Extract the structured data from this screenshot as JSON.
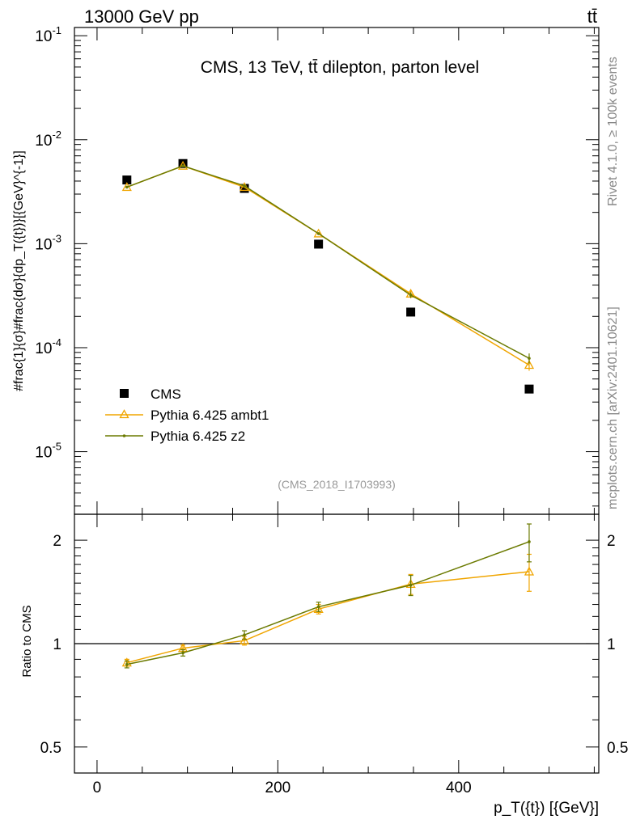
{
  "header": {
    "left": "13000 GeV pp",
    "right": "tt̄"
  },
  "side_texts": {
    "rivet": "Rivet 4.1.0, ≥ 100k events",
    "mcplots": "mcplots.cern.ch [arXiv:2401.10621]"
  },
  "chart_data": [
    {
      "type": "scatter",
      "title": "CMS, 13 TeV, tt̄ dilepton, parton level",
      "watermark": "(CMS_2018_I1703993)",
      "xlabel": "p_T({t}) [{GeV}]",
      "ylabel": "#frac{1}{σ}#frac{dσ}{dp_T({t})}[{GeV}^{-1}]",
      "yscale": "log",
      "xlim": [
        -25,
        555
      ],
      "ylim": [
        2.5e-06,
        0.12
      ],
      "y_ticks": [
        {
          "mantissa": "10",
          "exp": "-5"
        },
        {
          "mantissa": "10",
          "exp": "-4"
        },
        {
          "mantissa": "10",
          "exp": "-3"
        },
        {
          "mantissa": "10",
          "exp": "-2"
        },
        {
          "mantissa": "10",
          "exp": "-1"
        }
      ],
      "legend": {
        "position": "bottom-left"
      },
      "series": [
        {
          "name": "CMS",
          "color": "#000000",
          "marker": "square",
          "x": [
            33,
            95,
            163,
            245,
            347,
            478
          ],
          "y": [
            0.0041,
            0.0059,
            0.0034,
            0.00099,
            0.00022,
            4e-05
          ]
        },
        {
          "name": "Pythia 6.425 ambt1",
          "color": "#f0a500",
          "marker": "triangle",
          "x": [
            33,
            95,
            163,
            245,
            347,
            478
          ],
          "y": [
            0.0035,
            0.0056,
            0.0035,
            0.00125,
            0.00033,
            6.8e-05
          ],
          "yerr": [
            5e-05,
            6e-05,
            5e-05,
            3e-05,
            2e-05,
            8e-06
          ]
        },
        {
          "name": "Pythia 6.425 z2",
          "color": "#6b7a00",
          "marker": "dot",
          "x": [
            33,
            95,
            163,
            245,
            347,
            478
          ],
          "y": [
            0.0035,
            0.0056,
            0.0036,
            0.00125,
            0.00032,
            7.9e-05
          ],
          "yerr": [
            5e-05,
            6e-05,
            5e-05,
            3e-05,
            2e-05,
            9e-06
          ]
        }
      ]
    },
    {
      "type": "line",
      "ylabel": "Ratio to CMS",
      "xlabel": "p_T({t}) [{GeV}]",
      "yscale": "log",
      "xlim": [
        -25,
        555
      ],
      "ylim": [
        0.42,
        2.38
      ],
      "y_tick_labels": [
        "0.5",
        "1",
        "2"
      ],
      "x_tick_labels": [
        "0",
        "200",
        "400"
      ],
      "reference_line": 1,
      "series": [
        {
          "name": "Pythia 6.425 ambt1",
          "color": "#f0a500",
          "marker": "triangle",
          "x": [
            33,
            95,
            163,
            245,
            347,
            478
          ],
          "y": [
            0.88,
            0.97,
            1.02,
            1.26,
            1.49,
            1.62
          ],
          "yerr": [
            0.02,
            0.02,
            0.03,
            0.04,
            0.1,
            0.2
          ]
        },
        {
          "name": "Pythia 6.425 z2",
          "color": "#6b7a00",
          "marker": "dot",
          "x": [
            33,
            95,
            163,
            245,
            347,
            478
          ],
          "y": [
            0.87,
            0.94,
            1.06,
            1.28,
            1.48,
            1.98
          ],
          "yerr": [
            0.02,
            0.02,
            0.03,
            0.04,
            0.1,
            0.25
          ]
        }
      ]
    }
  ]
}
